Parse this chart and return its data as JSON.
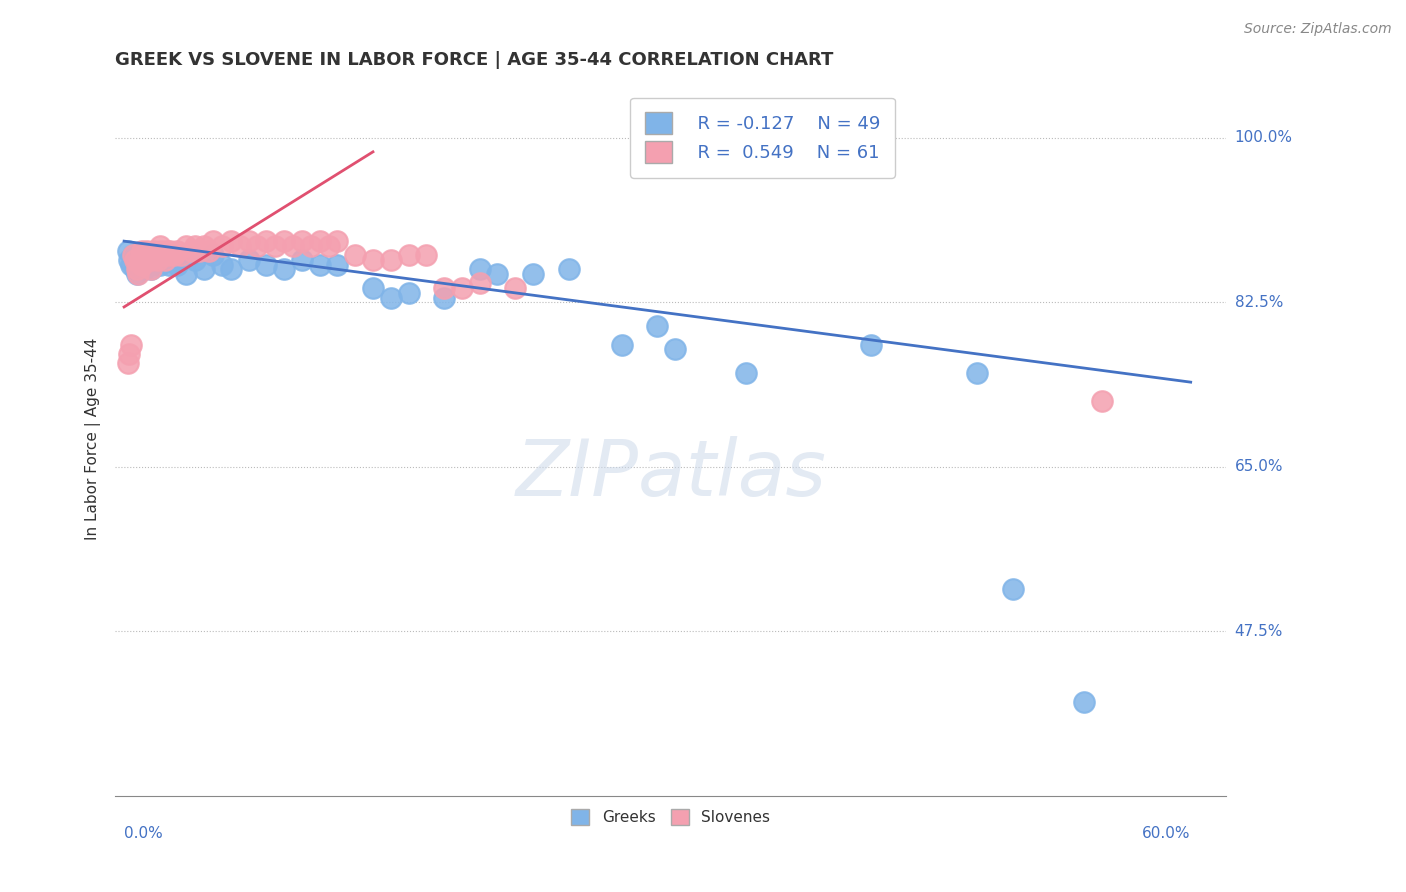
{
  "title": "GREEK VS SLOVENE IN LABOR FORCE | AGE 35-44 CORRELATION CHART",
  "source": "Source: ZipAtlas.com",
  "ylabel": "In Labor Force | Age 35-44",
  "ytick_labels": [
    "100.0%",
    "82.5%",
    "65.0%",
    "47.5%"
  ],
  "ytick_values": [
    1.0,
    0.825,
    0.65,
    0.475
  ],
  "xlim": [
    0.0,
    0.6
  ],
  "ylim": [
    0.3,
    1.06
  ],
  "legend_r_greek": "R = -0.127",
  "legend_n_greek": "N = 49",
  "legend_r_slovene": "R =  0.549",
  "legend_n_slovene": "N = 61",
  "greek_color": "#80b4e8",
  "slovene_color": "#f4a0b0",
  "greek_line_color": "#4472c4",
  "slovene_line_color": "#e05070",
  "greek_line_x": [
    0.0,
    0.6
  ],
  "greek_line_y": [
    0.89,
    0.74
  ],
  "slovene_line_x": [
    0.0,
    0.14
  ],
  "slovene_line_y": [
    0.82,
    0.985
  ],
  "greek_x": [
    0.002,
    0.003,
    0.004,
    0.005,
    0.006,
    0.007,
    0.008,
    0.009,
    0.01,
    0.011,
    0.012,
    0.013,
    0.014,
    0.015,
    0.016,
    0.018,
    0.02,
    0.022,
    0.025,
    0.028,
    0.03,
    0.035,
    0.04,
    0.045,
    0.05,
    0.055,
    0.06,
    0.07,
    0.08,
    0.09,
    0.1,
    0.11,
    0.12,
    0.14,
    0.15,
    0.16,
    0.18,
    0.2,
    0.21,
    0.23,
    0.25,
    0.28,
    0.3,
    0.31,
    0.35,
    0.42,
    0.48,
    0.5,
    0.54
  ],
  "greek_y": [
    0.88,
    0.87,
    0.865,
    0.875,
    0.86,
    0.855,
    0.87,
    0.875,
    0.865,
    0.86,
    0.875,
    0.87,
    0.865,
    0.86,
    0.87,
    0.875,
    0.865,
    0.87,
    0.865,
    0.87,
    0.865,
    0.855,
    0.87,
    0.86,
    0.875,
    0.865,
    0.86,
    0.87,
    0.865,
    0.86,
    0.87,
    0.865,
    0.865,
    0.84,
    0.83,
    0.835,
    0.83,
    0.86,
    0.855,
    0.855,
    0.86,
    0.78,
    0.8,
    0.775,
    0.75,
    0.78,
    0.75,
    0.52,
    0.4
  ],
  "slovene_x": [
    0.002,
    0.003,
    0.004,
    0.005,
    0.006,
    0.007,
    0.008,
    0.009,
    0.01,
    0.01,
    0.011,
    0.012,
    0.013,
    0.014,
    0.015,
    0.015,
    0.016,
    0.017,
    0.018,
    0.019,
    0.02,
    0.021,
    0.022,
    0.023,
    0.024,
    0.025,
    0.026,
    0.028,
    0.03,
    0.032,
    0.035,
    0.038,
    0.04,
    0.042,
    0.045,
    0.048,
    0.05,
    0.055,
    0.06,
    0.065,
    0.07,
    0.075,
    0.08,
    0.085,
    0.09,
    0.095,
    0.1,
    0.105,
    0.11,
    0.115,
    0.12,
    0.13,
    0.14,
    0.15,
    0.16,
    0.17,
    0.18,
    0.19,
    0.2,
    0.22,
    0.55
  ],
  "slovene_y": [
    0.76,
    0.77,
    0.78,
    0.875,
    0.87,
    0.86,
    0.855,
    0.87,
    0.88,
    0.865,
    0.875,
    0.87,
    0.88,
    0.875,
    0.87,
    0.86,
    0.875,
    0.88,
    0.875,
    0.87,
    0.885,
    0.88,
    0.875,
    0.87,
    0.88,
    0.875,
    0.88,
    0.875,
    0.88,
    0.875,
    0.885,
    0.88,
    0.885,
    0.88,
    0.885,
    0.88,
    0.89,
    0.885,
    0.89,
    0.885,
    0.89,
    0.885,
    0.89,
    0.885,
    0.89,
    0.885,
    0.89,
    0.885,
    0.89,
    0.885,
    0.89,
    0.875,
    0.87,
    0.87,
    0.875,
    0.875,
    0.84,
    0.84,
    0.845,
    0.84,
    0.72
  ]
}
